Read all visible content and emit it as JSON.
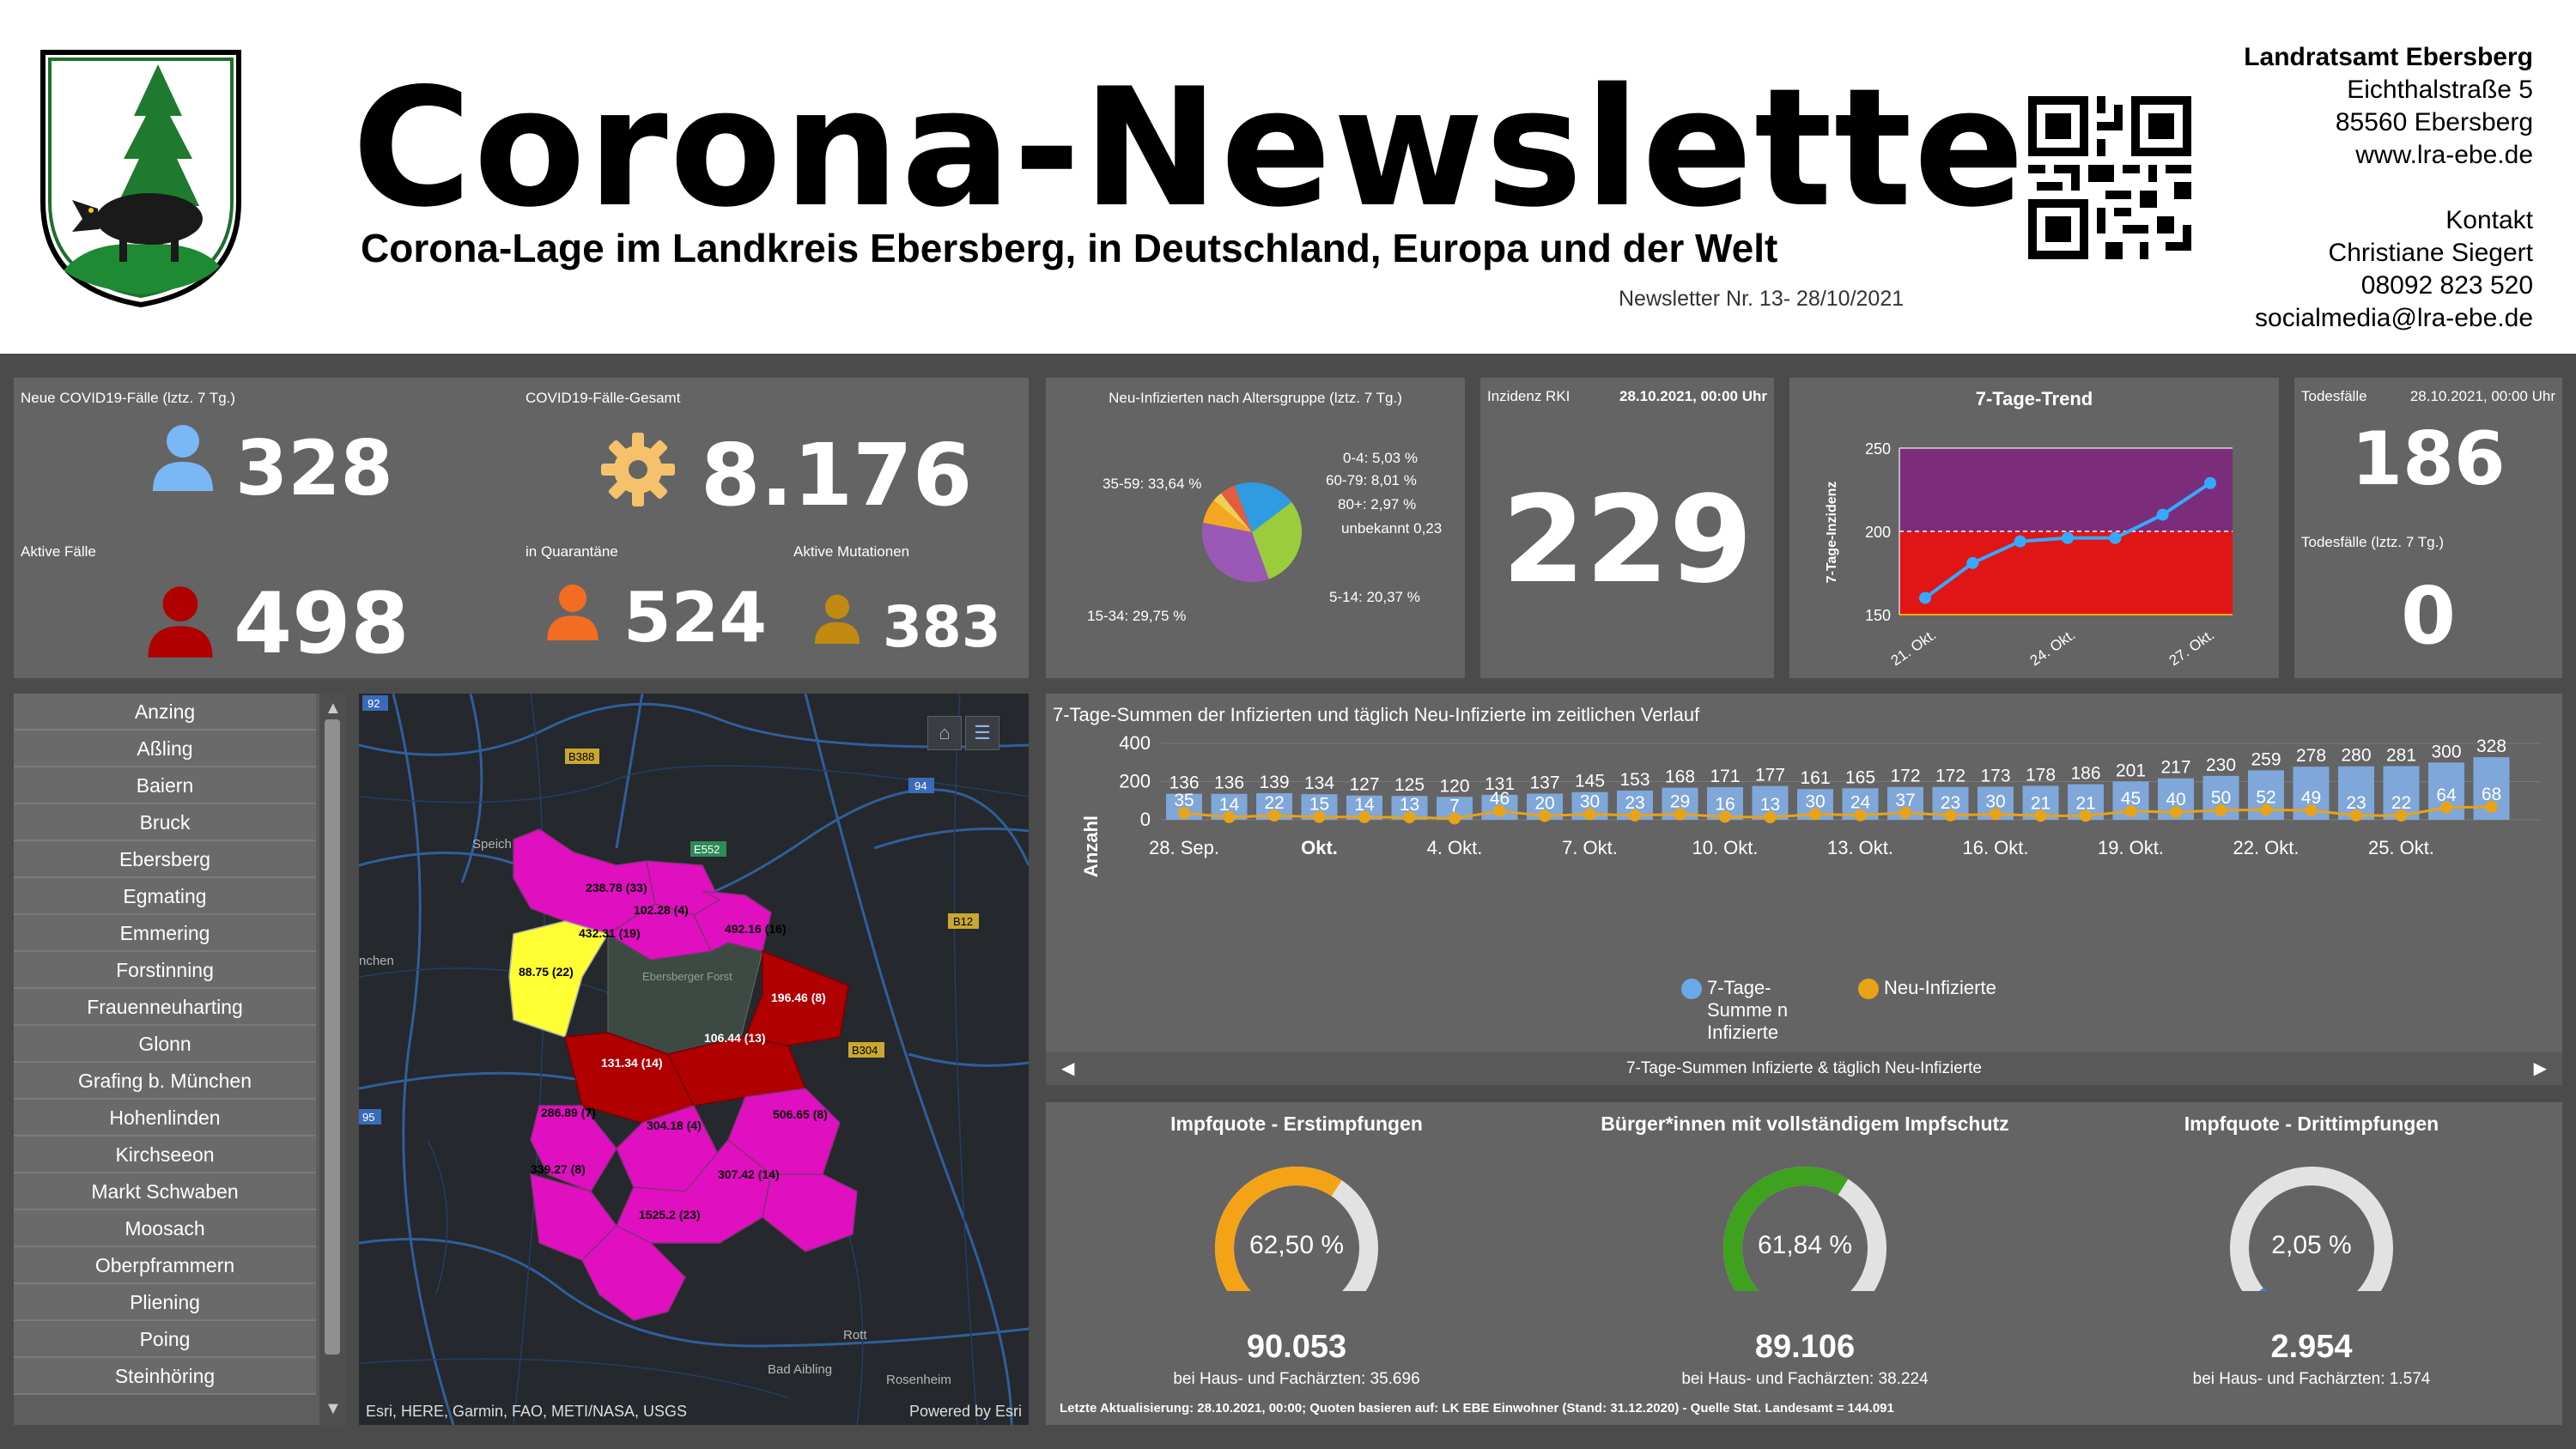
{
  "header": {
    "title": "Corona-Newsletter",
    "subtitle": "Corona-Lage im Landkreis Ebersberg, in Deutschland, Europa und der Welt",
    "issue": "Newsletter Nr. 13- 28/10/2021",
    "contact": {
      "org": "Landratsamt Ebersberg",
      "street": "Eichthalstraße 5",
      "city": "85560 Ebersberg",
      "web": "www.lra-ebe.de",
      "contact_label": "Kontakt",
      "person": "Christiane Siegert",
      "phone": "08092 823 520",
      "email": "socialmedia@lra-ebe.de"
    }
  },
  "kpis": {
    "new_cases_label": "Neue COVID19-Fälle (lztz. 7 Tg.)",
    "new_cases": "328",
    "total_label": "COVID19-Fälle-Gesamt",
    "total": "8.176",
    "active_label": "Aktive Fälle",
    "active": "498",
    "quarantine_label": "in Quarantäne",
    "quarantine": "524",
    "mutations_label": "Aktive Mutationen",
    "mutations": "383"
  },
  "age_pie": {
    "title": "Neu-Infizierten nach Altersgruppe (lztz. 7 Tg.)",
    "labels": [
      "0-4: 5,03 %",
      "60-79: 8,01 %",
      "80+: 2,97 %",
      "unbekannt 0,23",
      "5-14: 20,37 %",
      "15-34: 29,75 %",
      "35-59: 33,64 %"
    ]
  },
  "incidence": {
    "label": "Inzidenz RKI",
    "date": "28.10.2021, 00:00 Uhr",
    "value": "229"
  },
  "trend": {
    "title": "7-Tage-Trend",
    "ylabel": "7-Tage-Inzidenz",
    "yticks": [
      "250",
      "200",
      "150"
    ],
    "xticks": [
      "21. Okt.",
      "24. Okt.",
      "27. Okt."
    ]
  },
  "deaths": {
    "label": "Todesfälle",
    "date": "28.10.2021, 00:00 Uhr",
    "value": "186",
    "week_label": "Todesfälle (lztz. 7 Tg.)",
    "week_value": "0"
  },
  "municipalities": [
    "Anzing",
    "Aßling",
    "Baiern",
    "Bruck",
    "Ebersberg",
    "Egmating",
    "Emmering",
    "Forstinning",
    "Frauenneuharting",
    "Glonn",
    "Grafing b. München",
    "Hohenlinden",
    "Kirchseeon",
    "Markt Schwaben",
    "Moosach",
    "Oberpframmern",
    "Pliening",
    "Poing",
    "Steinhöring"
  ],
  "map": {
    "attribution": "Esri, HERE, Garmin, FAO, METI/NASA, USGS",
    "powered": "Powered by Esri",
    "road_labels": [
      "92",
      "B388",
      "94",
      "E552",
      "B12",
      "B304",
      "95"
    ],
    "place_labels": [
      "Speich",
      "nchen",
      "Ebersberger Forst",
      "Rott",
      "Bad Aibling",
      "Rosenheim"
    ],
    "values": [
      "238.78 (33)",
      "102.28 (4)",
      "432.31 (19)",
      "492.16 (16)",
      "88.75 (22)",
      "196.46 (8)",
      "106.44 (13)",
      "131.34 (14)",
      "286.89 (7)",
      "304.18 (4)",
      "506.65 (8)",
      "339.27 (8)",
      "307.42 (14)",
      "1525.2 (23)"
    ]
  },
  "timeline": {
    "title": "7-Tage-Summen der Infizierten und täglich Neu-Infizierte im zeitlichen Verlauf",
    "footer": "7-Tage-Summen Infizierte & täglich Neu-Infizierte",
    "legend_sum": "7-Tage-Summe n Infizierte",
    "legend_new": "Neu-Infizierte",
    "ylabel": "Anzahl"
  },
  "chart_data": [
    {
      "type": "bar",
      "title": "7-Tage-Summen der Infizierten und täglich Neu-Infizierte im zeitlichen Verlauf",
      "ylabel": "Anzahl",
      "ylim": [
        0,
        400
      ],
      "yticks": [
        0,
        200,
        400
      ],
      "xticks": [
        "28. Sep.",
        "Okt.",
        "4. Okt.",
        "7. Okt.",
        "10. Okt.",
        "13. Okt.",
        "16. Okt.",
        "19. Okt.",
        "22. Okt.",
        "25. Okt."
      ],
      "series": [
        {
          "name": "7-Tage-Summe n Infizierte",
          "type": "bar",
          "color": "#7fa7d9",
          "values": [
            136,
            136,
            139,
            134,
            127,
            125,
            120,
            131,
            137,
            145,
            153,
            168,
            171,
            177,
            161,
            165,
            172,
            172,
            173,
            178,
            186,
            201,
            217,
            230,
            259,
            278,
            280,
            281,
            300,
            328
          ]
        },
        {
          "name": "Neu-Infizierte",
          "type": "line",
          "color": "#e8a317",
          "values": [
            35,
            14,
            22,
            15,
            14,
            13,
            7,
            46,
            20,
            30,
            23,
            29,
            16,
            13,
            30,
            24,
            37,
            23,
            30,
            21,
            21,
            45,
            40,
            50,
            52,
            49,
            23,
            22,
            64,
            68
          ]
        }
      ]
    },
    {
      "type": "line",
      "title": "7-Tage-Trend",
      "ylabel": "7-Tage-Inzidenz",
      "ylim": [
        150,
        250
      ],
      "xticks": [
        "21. Okt.",
        "24. Okt.",
        "27. Okt."
      ],
      "series": [
        {
          "name": "",
          "color": "#33aaff",
          "values": [
            160,
            181,
            194,
            196,
            196,
            210,
            229
          ]
        }
      ]
    },
    {
      "type": "pie",
      "title": "Neu-Infizierten nach Altersgruppe (lztz. 7 Tg.)",
      "categories": [
        "0-4",
        "5-14",
        "15-34",
        "35-59",
        "60-79",
        "80+",
        "unbekannt"
      ],
      "values": [
        5.03,
        20.37,
        29.75,
        33.64,
        8.01,
        2.97,
        0.23
      ],
      "colors": [
        "#e55c3d",
        "#2f9be0",
        "#9bcc3b",
        "#9b59b6",
        "#f5a623",
        "#f0d04c",
        "#dddddd"
      ]
    }
  ],
  "vaccination": {
    "footnote": "Letzte Aktualisierung: 28.10.2021, 00:00; Quoten basieren auf: LK EBE Einwohner (Stand: 31.12.2020) - Quelle Stat. Landesamt = 144.091",
    "gauges": [
      {
        "title": "Impfquote  - Erstimpfungen",
        "percent_text": "62,50 %",
        "fraction": 0.625,
        "color": "#f5a316",
        "count": "90.053",
        "sub": "bei Haus- und Fachärzten: 35.696"
      },
      {
        "title": "Bürger*innen mit vollständigem Impfschutz",
        "percent_text": "61,84 %",
        "fraction": 0.6184,
        "color": "#3ea11f",
        "count": "89.106",
        "sub": "bei Haus- und Fachärzten: 38.224"
      },
      {
        "title": "Impfquote  - Drittimpfungen",
        "percent_text": "2,05 %",
        "fraction": 0.0205,
        "color": "#2e86de",
        "count": "2.954",
        "sub": "bei Haus- und Fachärzten: 1.574"
      }
    ]
  }
}
